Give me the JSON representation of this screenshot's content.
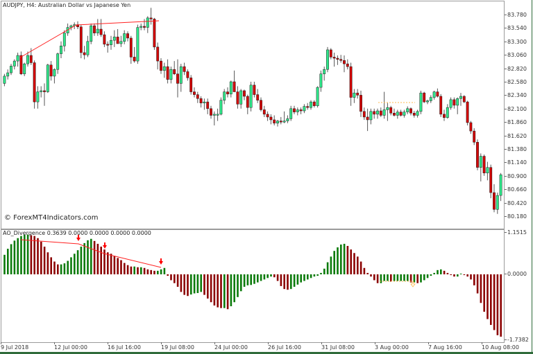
{
  "window": {
    "title": "AUDJPY, H4:  Australian Dollar vs Japanese Yen",
    "watermark": "© ForexMT4Indicators.com"
  },
  "indicator": {
    "label": "AO_Divergence 0.3639 0.0000 0.0000 0.0000 0.0000",
    "max_label": "1.1515",
    "zero_label": "0.0000",
    "min_label": "-1.7382"
  },
  "colors": {
    "bull_candle": "#2ee88a",
    "bear_candle": "#d40000",
    "ao_up": "#0a7a0a",
    "ao_down": "#8b0000",
    "divergence_line": "#ff2020",
    "arrow": "#ff0000",
    "hidden_div": "#ffb84d"
  },
  "price_axis": [
    "83.780",
    "83.540",
    "83.300",
    "83.060",
    "82.820",
    "82.580",
    "82.340",
    "82.100",
    "81.860",
    "81.620",
    "81.380",
    "81.140",
    "80.900",
    "80.660",
    "80.420",
    "80.180"
  ],
  "time_axis": [
    "9 Jul 2018",
    "12 Jul 00:00",
    "16 Jul 16:00",
    "19 Jul 08:00",
    "24 Jul 00:00",
    "26 Jul 16:00",
    "31 Jul 08:00",
    "3 Aug 00:00",
    "7 Aug 16:00",
    "10 Aug 08:00"
  ],
  "chart_data": [
    {
      "type": "candlestick",
      "title": "AUDJPY, H4: Australian Dollar vs Japanese Yen",
      "ylim": [
        80.05,
        83.95
      ],
      "y_ticks": [
        83.78,
        83.54,
        83.3,
        83.06,
        82.82,
        82.58,
        82.34,
        82.1,
        81.86,
        81.62,
        81.38,
        81.14,
        80.9,
        80.66,
        80.42,
        80.18
      ],
      "x_ticks": [
        "9 Jul 2018",
        "12 Jul 00:00",
        "16 Jul 16:00",
        "19 Jul 08:00",
        "24 Jul 00:00",
        "26 Jul 16:00",
        "31 Jul 08:00",
        "3 Aug 00:00",
        "7 Aug 16:00",
        "10 Aug 08:00"
      ],
      "ohlc": [
        [
          82.55,
          82.72,
          82.5,
          82.68
        ],
        [
          82.68,
          82.8,
          82.62,
          82.74
        ],
        [
          82.74,
          82.9,
          82.7,
          82.86
        ],
        [
          82.86,
          82.98,
          82.8,
          82.95
        ],
        [
          82.95,
          83.1,
          82.85,
          83.05
        ],
        [
          83.05,
          83.12,
          82.7,
          82.72
        ],
        [
          82.72,
          82.92,
          82.68,
          82.9
        ],
        [
          82.9,
          83.12,
          82.85,
          83.05
        ],
        [
          83.05,
          83.18,
          82.88,
          82.92
        ],
        [
          82.92,
          82.96,
          82.1,
          82.22
        ],
        [
          82.22,
          82.5,
          82.1,
          82.4
        ],
        [
          82.4,
          82.5,
          82.3,
          82.42
        ],
        [
          82.42,
          82.55,
          82.15,
          82.4
        ],
        [
          82.4,
          82.9,
          82.38,
          82.88
        ],
        [
          82.88,
          82.95,
          82.6,
          82.68
        ],
        [
          82.68,
          82.82,
          82.55,
          82.8
        ],
        [
          82.8,
          83.1,
          82.72,
          83.08
        ],
        [
          83.08,
          83.3,
          83.0,
          83.22
        ],
        [
          83.22,
          83.5,
          83.12,
          83.45
        ],
        [
          83.45,
          83.62,
          83.4,
          83.55
        ],
        [
          83.55,
          83.6,
          83.5,
          83.58
        ],
        [
          83.58,
          83.64,
          83.52,
          83.6
        ],
        [
          83.6,
          83.66,
          83.52,
          83.56
        ],
        [
          83.56,
          83.6,
          83.0,
          83.1
        ],
        [
          83.1,
          83.22,
          82.98,
          83.06
        ],
        [
          83.06,
          83.4,
          83.02,
          83.3
        ],
        [
          83.3,
          83.62,
          83.25,
          83.58
        ],
        [
          83.58,
          83.62,
          83.4,
          83.45
        ],
        [
          83.45,
          83.7,
          83.4,
          83.52
        ],
        [
          83.52,
          83.7,
          83.38,
          83.42
        ],
        [
          83.42,
          83.48,
          83.2,
          83.25
        ],
        [
          83.25,
          83.3,
          83.1,
          83.24
        ],
        [
          83.24,
          83.4,
          83.15,
          83.32
        ],
        [
          83.32,
          83.5,
          83.2,
          83.38
        ],
        [
          83.38,
          83.52,
          83.28,
          83.26
        ],
        [
          83.26,
          83.4,
          83.2,
          83.3
        ],
        [
          83.3,
          83.5,
          83.25,
          83.44
        ],
        [
          83.44,
          83.48,
          83.3,
          83.36
        ],
        [
          83.36,
          83.4,
          82.9,
          83.02
        ],
        [
          83.02,
          83.2,
          82.92,
          82.95
        ],
        [
          82.95,
          83.6,
          82.9,
          83.55
        ],
        [
          83.55,
          83.62,
          83.5,
          83.57
        ],
        [
          83.57,
          83.7,
          83.5,
          83.55
        ],
        [
          83.55,
          83.75,
          83.45,
          83.72
        ],
        [
          83.72,
          83.9,
          83.6,
          83.7
        ],
        [
          83.7,
          83.72,
          83.15,
          83.2
        ],
        [
          83.2,
          83.28,
          82.8,
          82.95
        ],
        [
          82.95,
          83.0,
          82.72,
          82.78
        ],
        [
          82.78,
          82.92,
          82.65,
          82.85
        ],
        [
          82.85,
          82.98,
          82.55,
          82.62
        ],
        [
          82.62,
          82.85,
          82.55,
          82.8
        ],
        [
          82.8,
          82.95,
          82.7,
          82.72
        ],
        [
          82.72,
          82.98,
          82.3,
          82.55
        ],
        [
          82.55,
          82.9,
          82.4,
          82.85
        ],
        [
          82.85,
          82.92,
          82.7,
          82.76
        ],
        [
          82.76,
          82.8,
          82.6,
          82.65
        ],
        [
          82.65,
          82.7,
          82.35,
          82.4
        ],
        [
          82.4,
          82.48,
          82.3,
          82.35
        ],
        [
          82.35,
          82.4,
          82.2,
          82.28
        ],
        [
          82.28,
          82.32,
          82.12,
          82.2
        ],
        [
          82.2,
          82.28,
          82.08,
          82.22
        ],
        [
          82.22,
          82.28,
          82.0,
          82.1
        ],
        [
          82.1,
          82.15,
          81.92,
          81.98
        ],
        [
          81.98,
          82.05,
          81.8,
          82.0
        ],
        [
          82.0,
          82.1,
          81.88,
          82.0
        ],
        [
          82.0,
          82.3,
          81.98,
          82.25
        ],
        [
          82.25,
          82.45,
          82.18,
          82.4
        ],
        [
          82.4,
          82.48,
          82.3,
          82.36
        ],
        [
          82.36,
          82.6,
          82.3,
          82.58
        ],
        [
          82.58,
          82.78,
          82.5,
          82.4
        ],
        [
          82.4,
          82.5,
          82.1,
          82.18
        ],
        [
          82.18,
          82.45,
          82.1,
          82.42
        ],
        [
          82.42,
          82.44,
          82.25,
          82.32
        ],
        [
          82.32,
          82.35,
          82.0,
          82.12
        ],
        [
          82.12,
          82.58,
          82.05,
          82.52
        ],
        [
          82.52,
          82.58,
          82.3,
          82.35
        ],
        [
          82.35,
          82.45,
          82.2,
          82.25
        ],
        [
          82.25,
          82.3,
          82.05,
          82.08
        ],
        [
          82.08,
          82.15,
          81.95,
          82.0
        ],
        [
          82.0,
          82.05,
          81.88,
          81.95
        ],
        [
          81.95,
          82.0,
          81.82,
          81.9
        ],
        [
          81.9,
          81.98,
          81.8,
          81.84
        ],
        [
          81.84,
          81.9,
          81.78,
          81.88
        ],
        [
          81.88,
          81.95,
          81.82,
          81.86
        ],
        [
          81.86,
          82.05,
          81.84,
          81.88
        ],
        [
          81.88,
          81.98,
          81.84,
          81.92
        ],
        [
          81.92,
          82.15,
          81.88,
          82.1
        ],
        [
          82.1,
          82.15,
          82.0,
          82.04
        ],
        [
          82.04,
          82.12,
          81.98,
          82.08
        ],
        [
          82.08,
          82.12,
          82.0,
          82.06
        ],
        [
          82.06,
          82.18,
          82.02,
          82.14
        ],
        [
          82.14,
          82.2,
          82.08,
          82.12
        ],
        [
          82.12,
          82.25,
          82.08,
          82.22
        ],
        [
          82.22,
          82.25,
          82.12,
          82.15
        ],
        [
          82.15,
          82.5,
          82.12,
          82.48
        ],
        [
          82.48,
          82.78,
          82.4,
          82.72
        ],
        [
          82.72,
          82.85,
          82.6,
          82.8
        ],
        [
          82.8,
          83.2,
          82.75,
          83.15
        ],
        [
          83.15,
          83.18,
          82.98,
          83.02
        ],
        [
          83.02,
          83.1,
          82.85,
          83.0
        ],
        [
          83.0,
          83.05,
          82.88,
          82.98
        ],
        [
          82.98,
          83.06,
          82.92,
          82.96
        ],
        [
          82.96,
          83.05,
          82.75,
          82.9
        ],
        [
          82.9,
          82.98,
          82.8,
          82.85
        ],
        [
          82.85,
          82.92,
          82.15,
          82.3
        ],
        [
          82.3,
          82.45,
          82.2,
          82.38
        ],
        [
          82.38,
          82.45,
          82.28,
          82.34
        ],
        [
          82.34,
          82.42,
          81.95,
          82.05
        ],
        [
          82.05,
          82.12,
          81.9,
          81.95
        ],
        [
          81.95,
          82.1,
          81.7,
          81.9
        ],
        [
          81.9,
          82.1,
          81.82,
          82.05
        ],
        [
          82.05,
          82.1,
          81.92,
          82.0
        ],
        [
          82.0,
          82.1,
          81.92,
          82.06
        ],
        [
          82.06,
          82.12,
          81.95,
          81.98
        ],
        [
          81.98,
          82.4,
          81.92,
          82.08
        ],
        [
          82.08,
          82.2,
          81.88,
          82.12
        ],
        [
          82.12,
          82.15,
          81.98,
          82.02
        ],
        [
          82.02,
          82.1,
          81.96,
          81.98
        ],
        [
          81.98,
          82.08,
          81.92,
          82.04
        ],
        [
          82.04,
          82.08,
          81.96,
          81.98
        ],
        [
          81.98,
          82.08,
          81.94,
          82.04
        ],
        [
          82.04,
          82.14,
          82.0,
          82.1
        ],
        [
          82.1,
          82.12,
          81.98,
          82.02
        ],
        [
          82.02,
          82.06,
          81.94,
          81.98
        ],
        [
          81.98,
          82.08,
          81.94,
          82.05
        ],
        [
          82.05,
          82.42,
          82.0,
          82.38
        ],
        [
          82.38,
          82.4,
          82.2,
          82.22
        ],
        [
          82.22,
          82.26,
          82.18,
          82.24
        ],
        [
          82.24,
          82.34,
          82.2,
          82.3
        ],
        [
          82.3,
          82.42,
          82.26,
          82.4
        ],
        [
          82.4,
          82.46,
          82.3,
          82.32
        ],
        [
          82.32,
          82.36,
          81.95,
          82.0
        ],
        [
          82.0,
          82.08,
          81.88,
          81.94
        ],
        [
          81.94,
          82.18,
          81.92,
          82.12
        ],
        [
          82.12,
          82.3,
          82.08,
          82.26
        ],
        [
          82.26,
          82.3,
          82.1,
          82.16
        ],
        [
          82.16,
          82.3,
          82.0,
          82.28
        ],
        [
          82.28,
          82.38,
          82.15,
          82.32
        ],
        [
          82.32,
          82.34,
          82.2,
          82.22
        ],
        [
          82.22,
          82.24,
          81.8,
          81.85
        ],
        [
          81.85,
          81.88,
          81.65,
          81.7
        ],
        [
          81.7,
          81.75,
          81.45,
          81.5
        ],
        [
          81.5,
          81.55,
          81.0,
          81.05
        ],
        [
          81.05,
          81.3,
          80.8,
          81.25
        ],
        [
          81.25,
          81.28,
          80.9,
          80.95
        ],
        [
          80.95,
          81.15,
          80.82,
          81.05
        ],
        [
          81.05,
          81.1,
          80.5,
          80.6
        ],
        [
          80.6,
          80.75,
          80.25,
          80.3
        ],
        [
          80.3,
          80.6,
          80.22,
          80.55
        ],
        [
          80.55,
          80.95,
          80.45,
          80.92
        ]
      ]
    },
    {
      "type": "bar",
      "title": "AO_Divergence 0.3639 0.0000 0.0000 0.0000 0.0000",
      "ylim": [
        -1.7382,
        1.1515
      ],
      "y_ticks": [
        1.1515,
        0.0,
        -1.7382
      ],
      "annotations": [
        "bearish divergence arrows at 3 histogram peaks",
        "bearish divergence trendline on price highs",
        "hidden divergence marker near 4 Aug"
      ],
      "values": [
        0.55,
        0.72,
        0.85,
        0.95,
        1.02,
        1.08,
        1.12,
        1.12,
        1.1,
        1.08,
        1.02,
        0.92,
        0.78,
        0.62,
        0.48,
        0.36,
        0.28,
        0.28,
        0.31,
        0.38,
        0.48,
        0.58,
        0.68,
        0.78,
        0.88,
        0.96,
        1.0,
        0.94,
        0.86,
        0.78,
        0.7,
        0.62,
        0.58,
        0.52,
        0.46,
        0.4,
        0.32,
        0.26,
        0.22,
        0.22,
        0.2,
        0.2,
        0.18,
        0.14,
        0.12,
        0.1,
        0.1,
        0.14,
        0.18,
        -0.04,
        -0.16,
        -0.24,
        -0.34,
        -0.48,
        -0.56,
        -0.59,
        -0.55,
        -0.52,
        -0.51,
        -0.48,
        -0.56,
        -0.66,
        -0.76,
        -0.85,
        -0.9,
        -0.92,
        -0.92,
        -0.95,
        -0.87,
        -0.76,
        -0.62,
        -0.46,
        -0.34,
        -0.3,
        -0.29,
        -0.26,
        -0.22,
        -0.18,
        -0.14,
        -0.1,
        -0.06,
        -0.08,
        -0.18,
        -0.32,
        -0.4,
        -0.42,
        -0.4,
        -0.34,
        -0.28,
        -0.22,
        -0.18,
        -0.14,
        -0.1,
        -0.06,
        -0.04,
        0.04,
        0.16,
        0.34,
        0.5,
        0.66,
        0.76,
        0.84,
        0.86,
        0.8,
        0.7,
        0.6,
        0.5,
        0.36,
        0.18,
        0.04,
        -0.06,
        -0.16,
        -0.24,
        -0.24,
        -0.18,
        -0.18,
        -0.2,
        -0.18,
        -0.18,
        -0.18,
        -0.18,
        -0.18,
        -0.22,
        -0.22,
        -0.24,
        -0.22,
        -0.16,
        -0.1,
        -0.04,
        0.04,
        0.12,
        0.14,
        0.1,
        0.04,
        -0.02,
        -0.06,
        -0.06,
        0.02,
        -0.02,
        -0.06,
        -0.14,
        -0.3,
        -0.52,
        -0.78,
        -1.02,
        -1.22,
        -1.38,
        -1.52,
        -1.66,
        -1.7
      ]
    }
  ]
}
